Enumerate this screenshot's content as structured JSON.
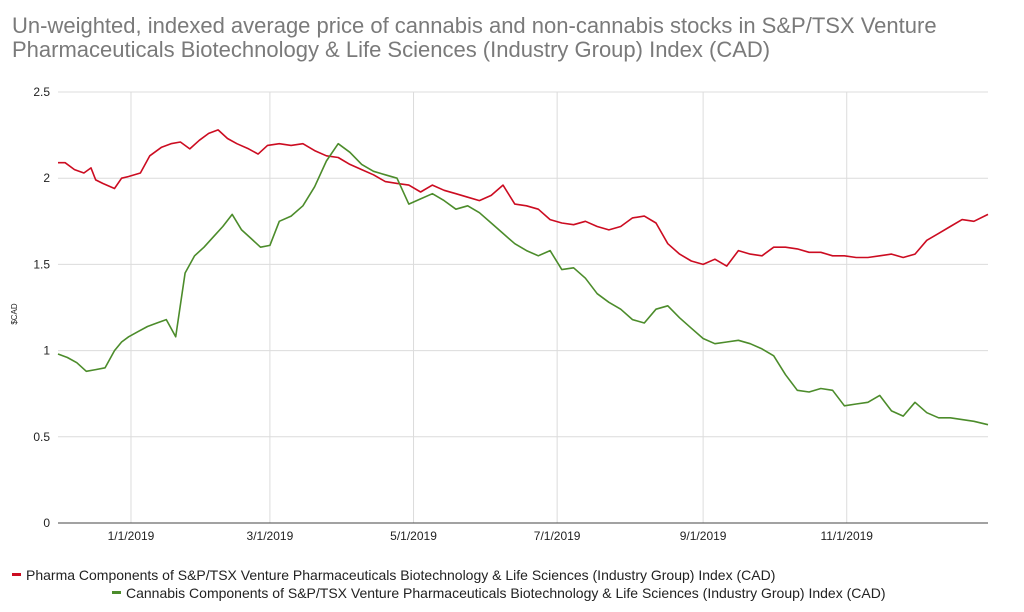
{
  "chart_data": {
    "type": "line",
    "title": "Un-weighted, indexed average price of cannabis and non-cannabis stocks in S&P/TSX Venture Pharmaceuticals Biotechnology & Life Sciences (Industry Group) Index (CAD)",
    "ylabel": "$CAD",
    "xlabel": "",
    "ylim": [
      0,
      2.5
    ],
    "y_ticks": [
      "0",
      "0.5",
      "1",
      "1.5",
      "2",
      "2.5"
    ],
    "x_ticks": [
      "1/1/2019",
      "3/1/2019",
      "5/1/2019",
      "7/1/2019",
      "9/1/2019",
      "11/1/2019"
    ],
    "x_tick_dates": [
      "2019-01-01",
      "2019-03-01",
      "2019-05-01",
      "2019-07-01",
      "2019-09-01",
      "2019-11-01"
    ],
    "x_range": [
      "2018-12-01",
      "2019-12-31"
    ],
    "grid": true,
    "legend_position": "bottom",
    "series": [
      {
        "name": "Pharma Components of S&P/TSX Venture Pharmaceuticals Biotechnology & Life Sciences (Industry Group) Index (CAD)",
        "color": "#cc0c21",
        "x": [
          "2018-12-01",
          "2018-12-04",
          "2018-12-08",
          "2018-12-12",
          "2018-12-15",
          "2018-12-17",
          "2018-12-20",
          "2018-12-25",
          "2018-12-28",
          "2018-12-31",
          "2019-01-05",
          "2019-01-09",
          "2019-01-14",
          "2019-01-18",
          "2019-01-22",
          "2019-01-26",
          "2019-01-30",
          "2019-02-03",
          "2019-02-07",
          "2019-02-11",
          "2019-02-15",
          "2019-02-20",
          "2019-02-24",
          "2019-02-28",
          "2019-03-05",
          "2019-03-10",
          "2019-03-15",
          "2019-03-20",
          "2019-03-25",
          "2019-03-30",
          "2019-04-04",
          "2019-04-09",
          "2019-04-14",
          "2019-04-19",
          "2019-04-24",
          "2019-04-29",
          "2019-05-04",
          "2019-05-09",
          "2019-05-14",
          "2019-05-19",
          "2019-05-24",
          "2019-05-29",
          "2019-06-03",
          "2019-06-08",
          "2019-06-13",
          "2019-06-18",
          "2019-06-23",
          "2019-06-28",
          "2019-07-03",
          "2019-07-08",
          "2019-07-13",
          "2019-07-18",
          "2019-07-23",
          "2019-07-28",
          "2019-08-02",
          "2019-08-07",
          "2019-08-12",
          "2019-08-17",
          "2019-08-22",
          "2019-08-27",
          "2019-09-01",
          "2019-09-06",
          "2019-09-11",
          "2019-09-16",
          "2019-09-21",
          "2019-09-26",
          "2019-10-01",
          "2019-10-06",
          "2019-10-11",
          "2019-10-16",
          "2019-10-21",
          "2019-10-26",
          "2019-10-31",
          "2019-11-05",
          "2019-11-10",
          "2019-11-15",
          "2019-11-20",
          "2019-11-25",
          "2019-11-30",
          "2019-12-05",
          "2019-12-10",
          "2019-12-15",
          "2019-12-20",
          "2019-12-25",
          "2019-12-31"
        ],
        "values": [
          2.09,
          2.09,
          2.05,
          2.03,
          2.06,
          1.99,
          1.97,
          1.94,
          2.0,
          2.01,
          2.03,
          2.13,
          2.18,
          2.2,
          2.21,
          2.17,
          2.22,
          2.26,
          2.28,
          2.23,
          2.2,
          2.17,
          2.14,
          2.19,
          2.2,
          2.19,
          2.2,
          2.16,
          2.13,
          2.12,
          2.08,
          2.05,
          2.02,
          1.98,
          1.97,
          1.96,
          1.92,
          1.96,
          1.93,
          1.91,
          1.89,
          1.87,
          1.9,
          1.96,
          1.85,
          1.84,
          1.82,
          1.76,
          1.74,
          1.73,
          1.75,
          1.72,
          1.7,
          1.72,
          1.77,
          1.78,
          1.74,
          1.62,
          1.56,
          1.52,
          1.5,
          1.53,
          1.49,
          1.58,
          1.56,
          1.55,
          1.6,
          1.6,
          1.59,
          1.57,
          1.57,
          1.55,
          1.55,
          1.54,
          1.54,
          1.55,
          1.56,
          1.54,
          1.56,
          1.64,
          1.68,
          1.72,
          1.76,
          1.75,
          1.79
        ]
      },
      {
        "name": "Cannabis Components of S&P/TSX Venture Pharmaceuticals Biotechnology & Life Sciences (Industry Group) Index (CAD)",
        "color": "#4c8c2b",
        "x": [
          "2018-12-01",
          "2018-12-05",
          "2018-12-09",
          "2018-12-13",
          "2018-12-17",
          "2018-12-21",
          "2018-12-25",
          "2018-12-28",
          "2018-12-31",
          "2019-01-04",
          "2019-01-08",
          "2019-01-12",
          "2019-01-16",
          "2019-01-20",
          "2019-01-24",
          "2019-01-28",
          "2019-02-01",
          "2019-02-05",
          "2019-02-09",
          "2019-02-13",
          "2019-02-17",
          "2019-02-21",
          "2019-02-25",
          "2019-03-01",
          "2019-03-05",
          "2019-03-10",
          "2019-03-15",
          "2019-03-20",
          "2019-03-25",
          "2019-03-30",
          "2019-04-04",
          "2019-04-09",
          "2019-04-14",
          "2019-04-19",
          "2019-04-24",
          "2019-04-29",
          "2019-05-04",
          "2019-05-09",
          "2019-05-14",
          "2019-05-19",
          "2019-05-24",
          "2019-05-29",
          "2019-06-03",
          "2019-06-08",
          "2019-06-13",
          "2019-06-18",
          "2019-06-23",
          "2019-06-28",
          "2019-07-03",
          "2019-07-08",
          "2019-07-13",
          "2019-07-18",
          "2019-07-23",
          "2019-07-28",
          "2019-08-02",
          "2019-08-07",
          "2019-08-12",
          "2019-08-17",
          "2019-08-22",
          "2019-08-27",
          "2019-09-01",
          "2019-09-06",
          "2019-09-11",
          "2019-09-16",
          "2019-09-21",
          "2019-09-26",
          "2019-10-01",
          "2019-10-06",
          "2019-10-11",
          "2019-10-16",
          "2019-10-21",
          "2019-10-26",
          "2019-10-31",
          "2019-11-05",
          "2019-11-10",
          "2019-11-15",
          "2019-11-20",
          "2019-11-25",
          "2019-11-30",
          "2019-12-05",
          "2019-12-10",
          "2019-12-15",
          "2019-12-20",
          "2019-12-25",
          "2019-12-31"
        ],
        "values": [
          0.98,
          0.96,
          0.93,
          0.88,
          0.89,
          0.9,
          1.0,
          1.05,
          1.08,
          1.11,
          1.14,
          1.16,
          1.18,
          1.08,
          1.45,
          1.55,
          1.6,
          1.66,
          1.72,
          1.79,
          1.7,
          1.65,
          1.6,
          1.61,
          1.75,
          1.78,
          1.84,
          1.95,
          2.1,
          2.2,
          2.15,
          2.08,
          2.04,
          2.02,
          2.0,
          1.85,
          1.88,
          1.91,
          1.87,
          1.82,
          1.84,
          1.8,
          1.74,
          1.68,
          1.62,
          1.58,
          1.55,
          1.58,
          1.47,
          1.48,
          1.42,
          1.33,
          1.28,
          1.24,
          1.18,
          1.16,
          1.24,
          1.26,
          1.19,
          1.13,
          1.07,
          1.04,
          1.05,
          1.06,
          1.04,
          1.01,
          0.97,
          0.86,
          0.77,
          0.76,
          0.78,
          0.77,
          0.68,
          0.69,
          0.7,
          0.74,
          0.65,
          0.62,
          0.7,
          0.64,
          0.61,
          0.61,
          0.6,
          0.59,
          0.57
        ]
      }
    ]
  }
}
